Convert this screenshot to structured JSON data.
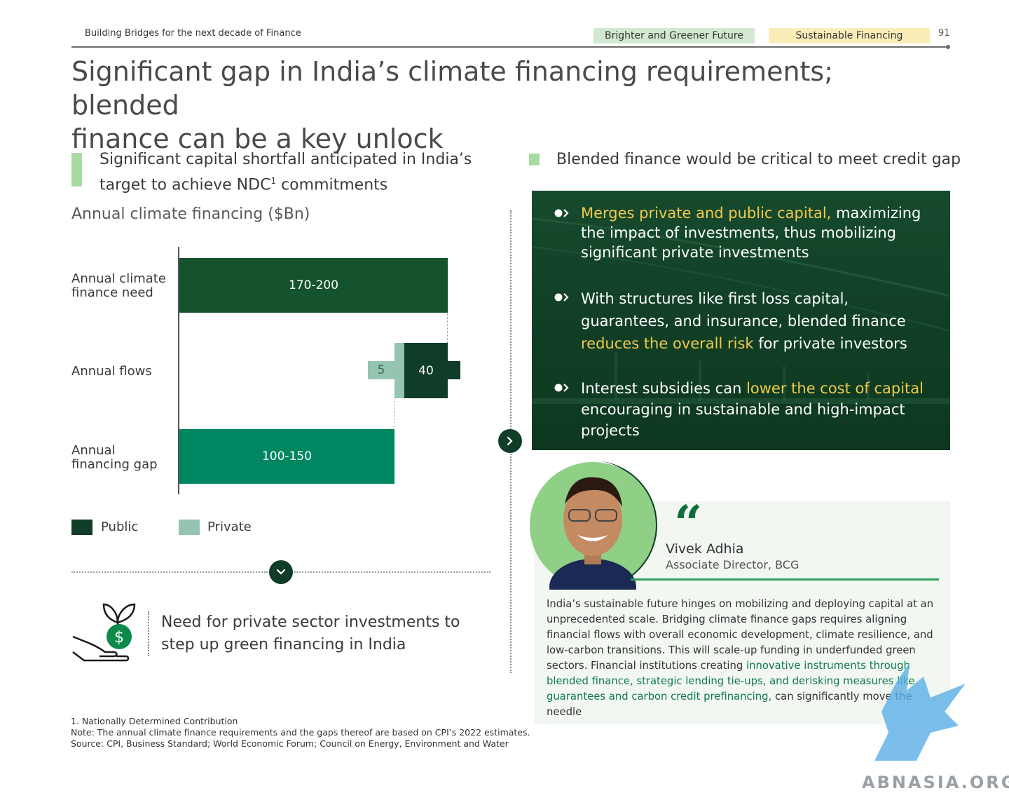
{
  "header": {
    "doc_title": "Building Bridges for the next decade of Finance",
    "tag_1": "Brighter and Greener Future",
    "tag_2": "Sustainable Financing",
    "page_number": "91"
  },
  "title": {
    "line1": "Significant gap in India’s climate financing requirements; blended",
    "line2": "finance can be a key unlock"
  },
  "left": {
    "heading_part1": "Significant capital shortfall anticipated in India’s target to achieve NDC",
    "heading_sup": "1",
    "heading_part2": " commitments",
    "chart_title": "Annual climate financing ($Bn)"
  },
  "chart_data": {
    "type": "bar",
    "categories": [
      "Annual climate finance need",
      "Annual flows",
      "Annual financing gap"
    ],
    "series": [
      {
        "name": "Public",
        "values": [
          null,
          40,
          null
        ],
        "color": "#0f3d27"
      },
      {
        "name": "Private",
        "values": [
          null,
          5,
          null
        ],
        "color": "#95c4b1"
      }
    ],
    "ranges": [
      {
        "category": "Annual climate finance need",
        "label": "170-200",
        "low": 170,
        "high": 200,
        "color": "#14532d"
      },
      {
        "category": "Annual financing gap",
        "label": "100-150",
        "low": 100,
        "high": 150,
        "color": "#008660"
      }
    ],
    "value_labels": {
      "need": "170-200",
      "private": "5",
      "public": "40",
      "gap": "100-150"
    },
    "category_labels": {
      "need": "Annual climate\nfinance need",
      "flows": "Annual flows",
      "gap": "Annual\nfinancing gap"
    },
    "legend": [
      {
        "label": "Public",
        "color": "#0f3d27"
      },
      {
        "label": "Private",
        "color": "#95c4b1"
      }
    ],
    "legend_position": "bottom-left"
  },
  "left_bottom": {
    "need_text": "Need for private sector investments to step up green financing in India",
    "icon": "hand-holding-dollar-plant-icon"
  },
  "footnotes": {
    "line1": "1. Nationally Determined Contribution",
    "line2": "Note: The annual climate finance requirements and the gaps thereof are based on CPI’s 2022 estimates.",
    "line3": "Source: CPI, Business Standard; World Economic Forum; Council on Energy, Environment and Water"
  },
  "right": {
    "heading": "Blended finance would be critical to meet credit gap",
    "bullets": [
      {
        "hl": "Merges private and public capital,",
        "rest": " maximizing the impact of investments, thus mobilizing significant private investments"
      },
      {
        "pre": "With structures like first loss capital, guarantees, and insurance, blended finance ",
        "hl": "reduces the overall risk",
        "rest": " for private investors"
      },
      {
        "pre": "Interest subsidies can ",
        "hl": "lower the cost of capital",
        "rest": " encouraging in sustainable and high-impact projects"
      }
    ]
  },
  "quote": {
    "mark": "“",
    "name": "Vivek Adhia",
    "role": "Associate Director, BCG",
    "text_pre": "India’s sustainable future hinges on mobilizing and deploying capital at an unprecedented scale. Bridging climate finance gaps requires aligning financial flows with overall economic development, climate resilience, and low-carbon transitions. This will scale-up funding in underfunded green sectors. Financial institutions creating ",
    "text_hl": "innovative instruments through blended finance, strategic lending tie-ups, and derisking measures like guarantees and carbon credit prefinancing,",
    "text_post": " can significantly move the needle"
  },
  "watermark": "ABNASIA.ORG",
  "colors": {
    "dark_green": "#0f3d27",
    "mid_green": "#008660",
    "light_green": "#95c4b1",
    "accent_green": "#a8dba2",
    "highlight_yellow": "#f2c94c"
  }
}
